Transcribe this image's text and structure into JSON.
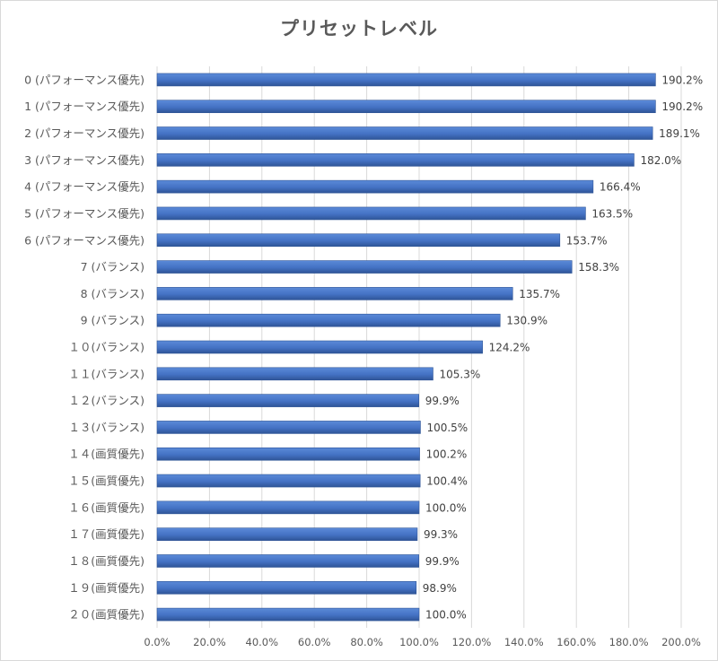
{
  "chart_data": {
    "type": "bar",
    "orientation": "horizontal",
    "title": "プリセットレベル",
    "categories": [
      "0 (パフォーマンス優先)",
      "1 (パフォーマンス優先)",
      "2 (パフォーマンス優先)",
      "3 (パフォーマンス優先)",
      "4 (パフォーマンス優先)",
      "5 (パフォーマンス優先)",
      "6 (パフォーマンス優先)",
      "7 (バランス)",
      "8 (バランス)",
      "9 (バランス)",
      "１０(バランス)",
      "１１(バランス)",
      "１２(バランス)",
      "１３(バランス)",
      "１４(画質優先)",
      "１５(画質優先)",
      "１６(画質優先)",
      "１７(画質優先)",
      "１８(画質優先)",
      "１９(画質優先)",
      "２０(画質優先)"
    ],
    "values": [
      190.2,
      190.2,
      189.1,
      182.0,
      166.4,
      163.5,
      153.7,
      158.3,
      135.7,
      130.9,
      124.2,
      105.3,
      99.9,
      100.5,
      100.2,
      100.4,
      100.0,
      99.3,
      99.9,
      98.9,
      100.0
    ],
    "value_labels": [
      "190.2%",
      "190.2%",
      "189.1%",
      "182.0%",
      "166.4%",
      "163.5%",
      "153.7%",
      "158.3%",
      "135.7%",
      "130.9%",
      "124.2%",
      "105.3%",
      "99.9%",
      "100.5%",
      "100.2%",
      "100.4%",
      "100.0%",
      "99.3%",
      "99.9%",
      "98.9%",
      "100.0%"
    ],
    "xticks": [
      "0.0%",
      "20.0%",
      "40.0%",
      "60.0%",
      "80.0%",
      "100.0%",
      "120.0%",
      "140.0%",
      "160.0%",
      "180.0%",
      "200.0%"
    ],
    "xlim": [
      0,
      200
    ],
    "grid": true,
    "bar_color": "#4472c4",
    "legend": "none"
  }
}
